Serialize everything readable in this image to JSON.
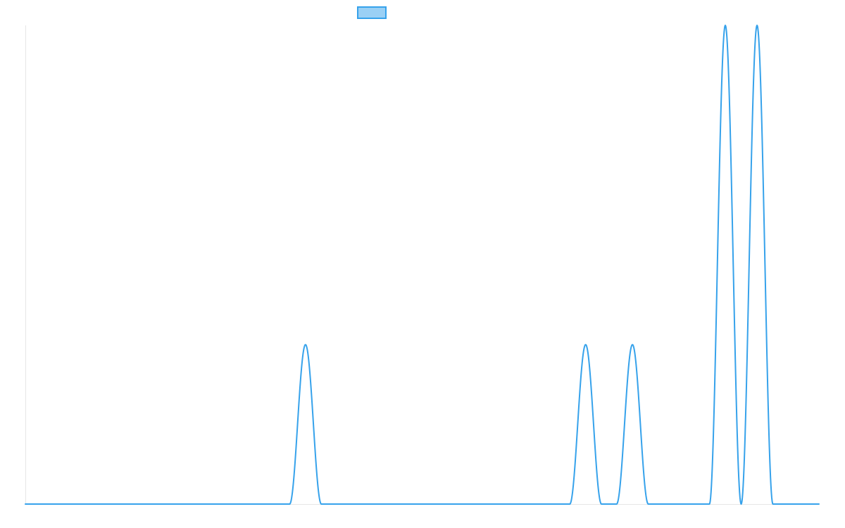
{
  "chart_data": {
    "type": "line",
    "title": "",
    "xlabel": "",
    "ylabel": "",
    "grid": false,
    "legend_position": "top-center",
    "legend_label": "",
    "colors": {
      "line": "#36a2eb",
      "fill": "#9ad0f5"
    },
    "xlim": [
      0,
      100
    ],
    "ylim": [
      0,
      1
    ],
    "peaks": [
      {
        "x": 35.3,
        "height": 0.333,
        "halfwidth": 2.0
      },
      {
        "x": 70.6,
        "height": 0.333,
        "halfwidth": 2.0
      },
      {
        "x": 76.5,
        "height": 0.333,
        "halfwidth": 2.0
      },
      {
        "x": 88.2,
        "height": 1.0,
        "halfwidth": 2.0
      },
      {
        "x": 92.2,
        "height": 1.0,
        "halfwidth": 2.0
      }
    ]
  }
}
